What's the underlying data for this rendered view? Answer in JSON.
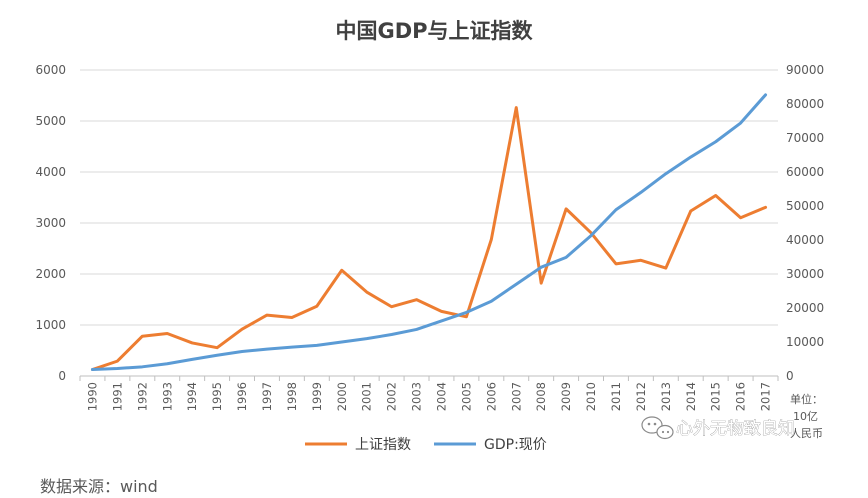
{
  "chart_data": {
    "type": "line",
    "title": "中国GDP与上证指数",
    "categories": [
      "1990",
      "1991",
      "1992",
      "1993",
      "1994",
      "1995",
      "1996",
      "1997",
      "1998",
      "1999",
      "2000",
      "2001",
      "2002",
      "2003",
      "2004",
      "2005",
      "2006",
      "2007",
      "2008",
      "2009",
      "2010",
      "2011",
      "2012",
      "2013",
      "2014",
      "2015",
      "2016",
      "2017"
    ],
    "ylim_left": [
      0,
      6000
    ],
    "yticks_left": [
      "0",
      "1000",
      "2000",
      "3000",
      "4000",
      "5000",
      "6000"
    ],
    "ylim_right": [
      0,
      90000
    ],
    "yticks_right": [
      "0",
      "10000",
      "20000",
      "30000",
      "40000",
      "50000",
      "60000",
      "70000",
      "80000",
      "90000"
    ],
    "grid": true,
    "legend_position": "bottom",
    "series": [
      {
        "name": "上证指数",
        "axis": "left",
        "color": "#ED7D31",
        "values": [
          127,
          292,
          780,
          834,
          648,
          555,
          917,
          1194,
          1147,
          1367,
          2073,
          1646,
          1358,
          1497,
          1267,
          1161,
          2676,
          5262,
          1821,
          3277,
          2808,
          2199,
          2269,
          2116,
          3235,
          3539,
          3104,
          3307
        ]
      },
      {
        "name": "GDP:现价",
        "axis": "right",
        "color": "#5B9BD5",
        "values": [
          1900,
          2200,
          2700,
          3600,
          4900,
          6100,
          7200,
          7900,
          8500,
          9000,
          10000,
          11000,
          12200,
          13700,
          16200,
          18700,
          22000,
          27000,
          32000,
          34900,
          41300,
          48900,
          54000,
          59500,
          64400,
          68900,
          74400,
          82700
        ]
      }
    ],
    "unit_label": [
      "单位：",
      "10亿",
      "人民币"
    ]
  },
  "source": "数据来源：wind",
  "watermark": "心外无物致良知"
}
